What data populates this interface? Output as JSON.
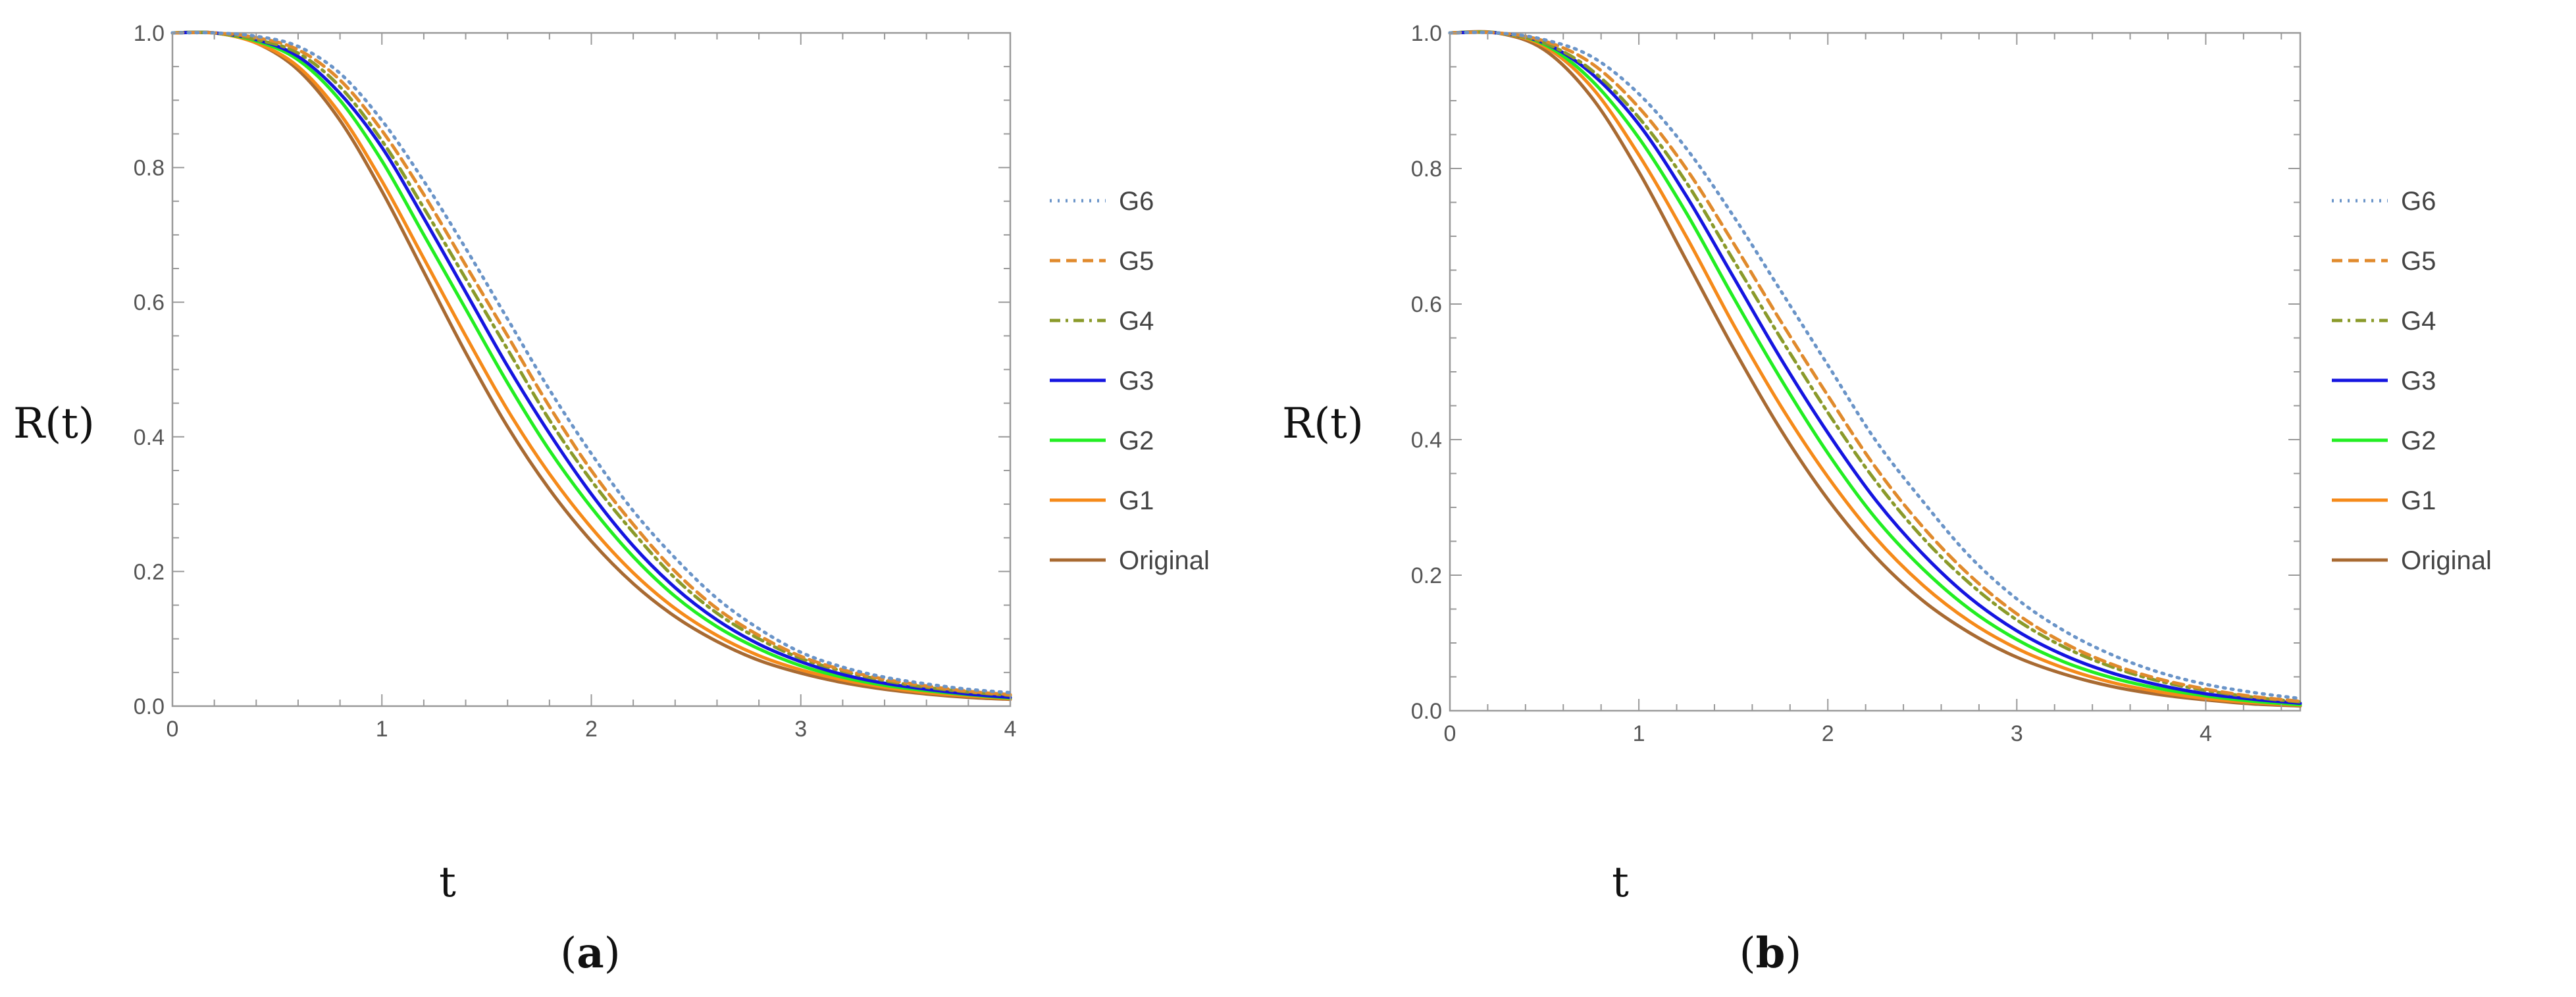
{
  "chart_data": [
    {
      "type": "line",
      "panel": "(a)",
      "panel_letter": "a",
      "xlabel": "t",
      "ylabel": "R(t)",
      "xlim": [
        0,
        4
      ],
      "ylim": [
        0,
        1
      ],
      "xticks": [
        0,
        1,
        2,
        3,
        4
      ],
      "xtick_labels": [
        "0",
        "1",
        "2",
        "3",
        "4"
      ],
      "yticks": [
        0,
        0.2,
        0.4,
        0.6,
        0.8,
        1.0
      ],
      "ytick_labels": [
        "0.0",
        "0.2",
        "0.4",
        "0.6",
        "0.8",
        "1.0"
      ],
      "grid": false,
      "legend_position": "right",
      "series": [
        {
          "name": "G6",
          "color": "#6a94c8",
          "style": "dotted",
          "x": [
            0,
            0.2,
            0.4,
            0.6,
            0.8,
            1,
            1.2,
            1.4,
            1.6,
            1.8,
            2,
            2.2,
            2.4,
            2.6,
            2.8,
            3,
            3.2,
            3.4,
            3.6,
            3.8,
            4
          ],
          "values": [
            1,
            1,
            0.995,
            0.98,
            0.94,
            0.87,
            0.78,
            0.68,
            0.575,
            0.47,
            0.375,
            0.29,
            0.22,
            0.16,
            0.115,
            0.08,
            0.058,
            0.043,
            0.033,
            0.025,
            0.02
          ]
        },
        {
          "name": "G5",
          "color": "#e08a2c",
          "style": "dashed",
          "x": [
            0,
            0.2,
            0.4,
            0.6,
            0.8,
            1,
            1.2,
            1.4,
            1.6,
            1.8,
            2,
            2.2,
            2.4,
            2.6,
            2.8,
            3,
            3.2,
            3.4,
            3.6,
            3.8,
            4
          ],
          "values": [
            1,
            1,
            0.993,
            0.975,
            0.93,
            0.855,
            0.76,
            0.655,
            0.55,
            0.445,
            0.35,
            0.27,
            0.2,
            0.145,
            0.105,
            0.074,
            0.054,
            0.04,
            0.03,
            0.022,
            0.017
          ]
        },
        {
          "name": "G4",
          "color": "#8a9a2a",
          "style": "dashdot",
          "x": [
            0,
            0.2,
            0.4,
            0.6,
            0.8,
            1,
            1.2,
            1.4,
            1.6,
            1.8,
            2,
            2.2,
            2.4,
            2.6,
            2.8,
            3,
            3.2,
            3.4,
            3.6,
            3.8,
            4
          ],
          "values": [
            1,
            1,
            0.99,
            0.97,
            0.92,
            0.84,
            0.74,
            0.635,
            0.53,
            0.425,
            0.335,
            0.258,
            0.19,
            0.138,
            0.1,
            0.071,
            0.052,
            0.038,
            0.028,
            0.021,
            0.016
          ]
        },
        {
          "name": "G3",
          "color": "#1515e0",
          "style": "solid",
          "x": [
            0,
            0.2,
            0.4,
            0.6,
            0.8,
            1,
            1.2,
            1.4,
            1.6,
            1.8,
            2,
            2.2,
            2.4,
            2.6,
            2.8,
            3,
            3.2,
            3.4,
            3.6,
            3.8,
            4
          ],
          "values": [
            1,
            1,
            0.99,
            0.965,
            0.91,
            0.83,
            0.725,
            0.615,
            0.505,
            0.405,
            0.315,
            0.238,
            0.176,
            0.128,
            0.092,
            0.066,
            0.047,
            0.034,
            0.025,
            0.018,
            0.013
          ]
        },
        {
          "name": "G2",
          "color": "#22ee22",
          "style": "solid",
          "x": [
            0,
            0.2,
            0.4,
            0.6,
            0.8,
            1,
            1.2,
            1.4,
            1.6,
            1.8,
            2,
            2.2,
            2.4,
            2.6,
            2.8,
            3,
            3.2,
            3.4,
            3.6,
            3.8,
            4
          ],
          "values": [
            1,
            1,
            0.988,
            0.96,
            0.9,
            0.81,
            0.7,
            0.59,
            0.48,
            0.38,
            0.295,
            0.222,
            0.163,
            0.118,
            0.085,
            0.06,
            0.043,
            0.031,
            0.023,
            0.017,
            0.012
          ]
        },
        {
          "name": "G1",
          "color": "#f58a1a",
          "style": "solid",
          "x": [
            0,
            0.2,
            0.4,
            0.6,
            0.8,
            1,
            1.2,
            1.4,
            1.6,
            1.8,
            2,
            2.2,
            2.4,
            2.6,
            2.8,
            3,
            3.2,
            3.4,
            3.6,
            3.8,
            4
          ],
          "values": [
            1,
            1,
            0.985,
            0.95,
            0.88,
            0.78,
            0.665,
            0.55,
            0.44,
            0.345,
            0.265,
            0.198,
            0.145,
            0.105,
            0.075,
            0.054,
            0.039,
            0.028,
            0.02,
            0.015,
            0.011
          ]
        },
        {
          "name": "Original",
          "color": "#a86a32",
          "style": "solid",
          "x": [
            0,
            0.2,
            0.4,
            0.6,
            0.8,
            1,
            1.2,
            1.4,
            1.6,
            1.8,
            2,
            2.2,
            2.4,
            2.6,
            2.8,
            3,
            3.2,
            3.4,
            3.6,
            3.8,
            4
          ],
          "values": [
            1,
            1,
            0.985,
            0.945,
            0.87,
            0.765,
            0.645,
            0.525,
            0.415,
            0.322,
            0.245,
            0.182,
            0.133,
            0.096,
            0.068,
            0.049,
            0.035,
            0.025,
            0.018,
            0.013,
            0.01
          ]
        }
      ]
    },
    {
      "type": "line",
      "panel": "(b)",
      "panel_letter": "b",
      "xlabel": "t",
      "ylabel": "R(t)",
      "xlim": [
        0,
        4.5
      ],
      "ylim": [
        0,
        1
      ],
      "xticks": [
        0,
        1,
        2,
        3,
        4
      ],
      "xtick_labels": [
        "0",
        "1",
        "2",
        "3",
        "4"
      ],
      "yticks": [
        0,
        0.2,
        0.4,
        0.6,
        0.8,
        1.0
      ],
      "ytick_labels": [
        "0.0",
        "0.2",
        "0.4",
        "0.6",
        "0.8",
        "1.0"
      ],
      "grid": false,
      "legend_position": "right",
      "series": [
        {
          "name": "G6",
          "color": "#6a94c8",
          "style": "dotted",
          "x": [
            0,
            0.25,
            0.5,
            0.75,
            1,
            1.25,
            1.5,
            1.75,
            2,
            2.25,
            2.5,
            2.75,
            3,
            3.25,
            3.5,
            3.75,
            4,
            4.25,
            4.5
          ],
          "values": [
            1,
            1,
            0.99,
            0.965,
            0.91,
            0.83,
            0.73,
            0.62,
            0.51,
            0.4,
            0.31,
            0.228,
            0.165,
            0.118,
            0.083,
            0.057,
            0.039,
            0.027,
            0.018
          ]
        },
        {
          "name": "G5",
          "color": "#e08a2c",
          "style": "dashed",
          "x": [
            0,
            0.25,
            0.5,
            0.75,
            1,
            1.25,
            1.5,
            1.75,
            2,
            2.25,
            2.5,
            2.75,
            3,
            3.25,
            3.5,
            3.75,
            4,
            4.25,
            4.5
          ],
          "values": [
            1,
            1,
            0.988,
            0.955,
            0.89,
            0.8,
            0.69,
            0.575,
            0.465,
            0.36,
            0.272,
            0.2,
            0.143,
            0.1,
            0.069,
            0.047,
            0.032,
            0.021,
            0.014
          ]
        },
        {
          "name": "G4",
          "color": "#8a9a2a",
          "style": "dashdot",
          "x": [
            0,
            0.25,
            0.5,
            0.75,
            1,
            1.25,
            1.5,
            1.75,
            2,
            2.25,
            2.5,
            2.75,
            3,
            3.25,
            3.5,
            3.75,
            4,
            4.25,
            4.5
          ],
          "values": [
            1,
            1,
            0.985,
            0.945,
            0.875,
            0.78,
            0.665,
            0.55,
            0.44,
            0.34,
            0.256,
            0.188,
            0.134,
            0.094,
            0.065,
            0.044,
            0.03,
            0.02,
            0.013
          ]
        },
        {
          "name": "G3",
          "color": "#1515e0",
          "style": "solid",
          "x": [
            0,
            0.25,
            0.5,
            0.75,
            1,
            1.25,
            1.5,
            1.75,
            2,
            2.25,
            2.5,
            2.75,
            3,
            3.25,
            3.5,
            3.75,
            4,
            4.25,
            4.5
          ],
          "values": [
            1,
            1,
            0.985,
            0.94,
            0.865,
            0.76,
            0.64,
            0.52,
            0.41,
            0.312,
            0.232,
            0.167,
            0.118,
            0.082,
            0.056,
            0.038,
            0.025,
            0.017,
            0.011
          ]
        },
        {
          "name": "G2",
          "color": "#22ee22",
          "style": "solid",
          "x": [
            0,
            0.25,
            0.5,
            0.75,
            1,
            1.25,
            1.5,
            1.75,
            2,
            2.25,
            2.5,
            2.75,
            3,
            3.25,
            3.5,
            3.75,
            4,
            4.25,
            4.5
          ],
          "values": [
            1,
            1,
            0.983,
            0.93,
            0.845,
            0.735,
            0.61,
            0.49,
            0.38,
            0.285,
            0.21,
            0.15,
            0.105,
            0.072,
            0.049,
            0.033,
            0.022,
            0.014,
            0.009
          ]
        },
        {
          "name": "G1",
          "color": "#f58a1a",
          "style": "solid",
          "x": [
            0,
            0.25,
            0.5,
            0.75,
            1,
            1.25,
            1.5,
            1.75,
            2,
            2.25,
            2.5,
            2.75,
            3,
            3.25,
            3.5,
            3.75,
            4,
            4.25,
            4.5
          ],
          "values": [
            1,
            1,
            0.98,
            0.92,
            0.82,
            0.7,
            0.57,
            0.45,
            0.345,
            0.256,
            0.186,
            0.132,
            0.092,
            0.063,
            0.042,
            0.028,
            0.018,
            0.012,
            0.008
          ]
        },
        {
          "name": "Original",
          "color": "#a86a32",
          "style": "solid",
          "x": [
            0,
            0.25,
            0.5,
            0.75,
            1,
            1.25,
            1.5,
            1.75,
            2,
            2.25,
            2.5,
            2.75,
            3,
            3.25,
            3.5,
            3.75,
            4,
            4.25,
            4.5
          ],
          "values": [
            1,
            1,
            0.975,
            0.905,
            0.795,
            0.665,
            0.535,
            0.415,
            0.312,
            0.228,
            0.163,
            0.115,
            0.079,
            0.054,
            0.036,
            0.024,
            0.016,
            0.01,
            0.007
          ]
        }
      ]
    }
  ]
}
